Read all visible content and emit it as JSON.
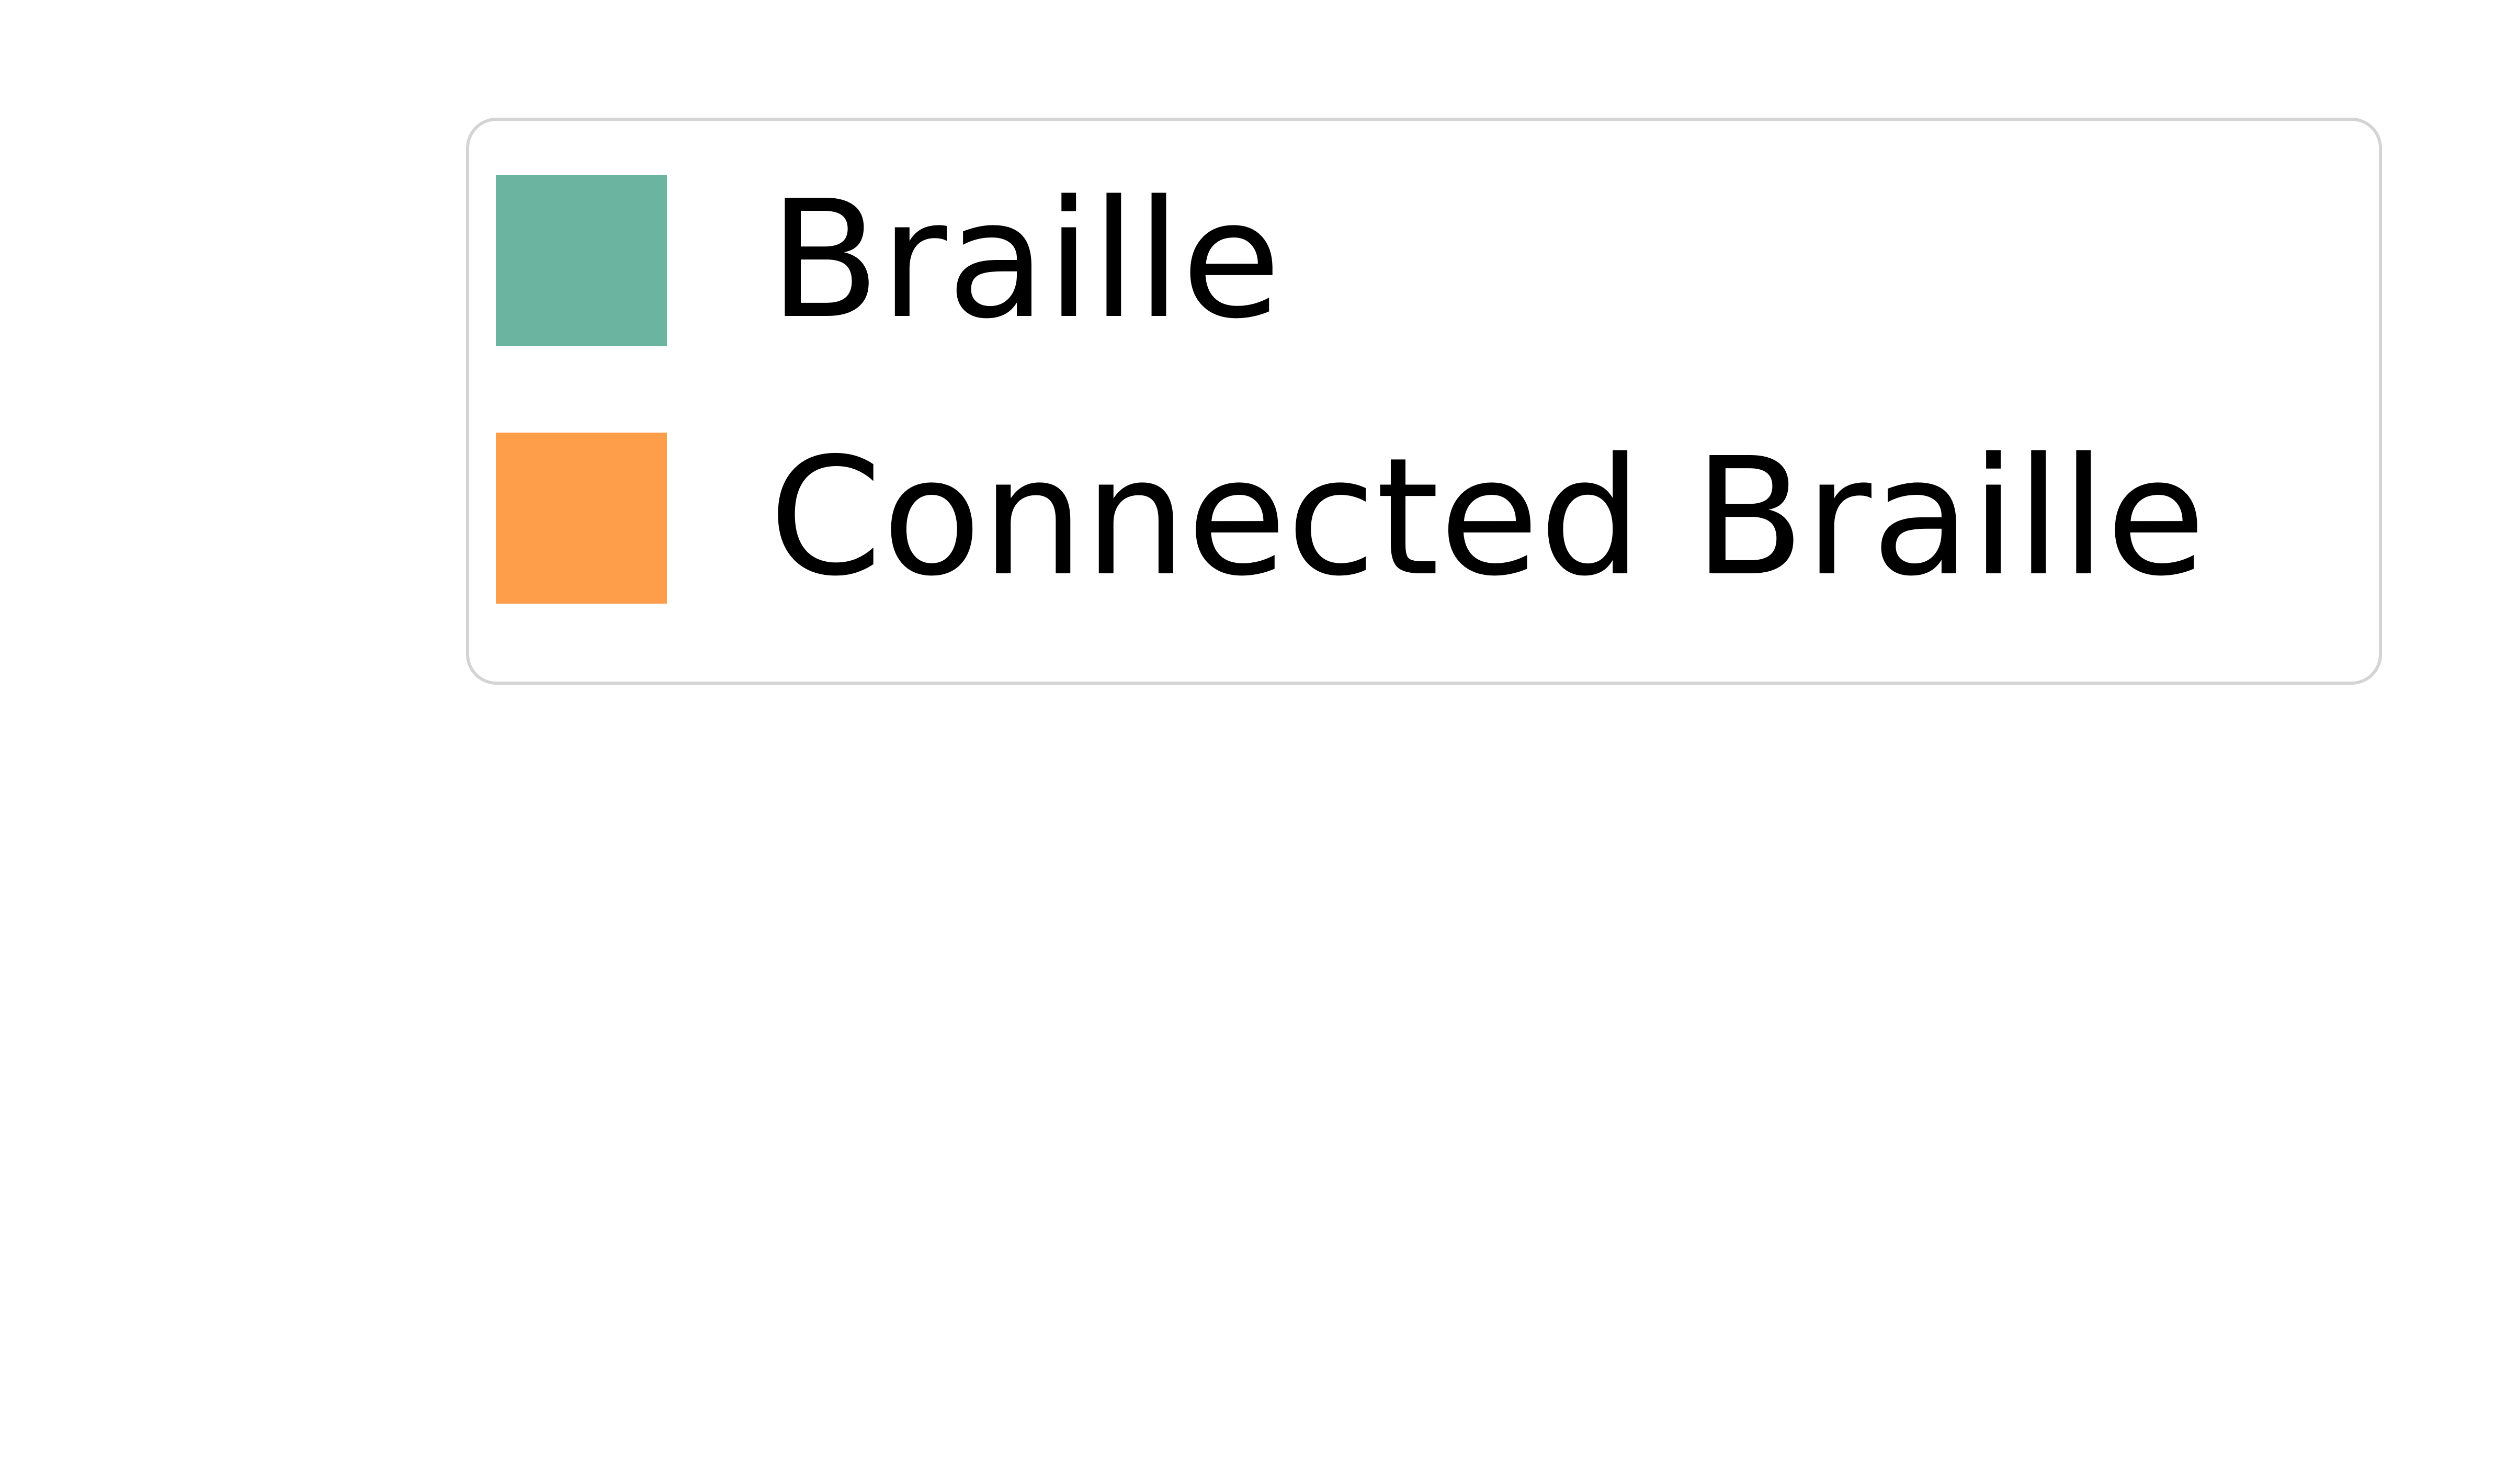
{
  "chart_data": {
    "type": "bar",
    "title": "",
    "xlabel": "",
    "ylabel": "",
    "legend": {
      "placement": "top-right",
      "entries": [
        {
          "name": "Braille",
          "color": "#6bb5a0"
        },
        {
          "name": "Connected Braille",
          "color": "#fe9e4b"
        }
      ]
    },
    "series": [
      {
        "name": "Braille",
        "values": []
      },
      {
        "name": "Connected Braille",
        "values": []
      }
    ]
  }
}
